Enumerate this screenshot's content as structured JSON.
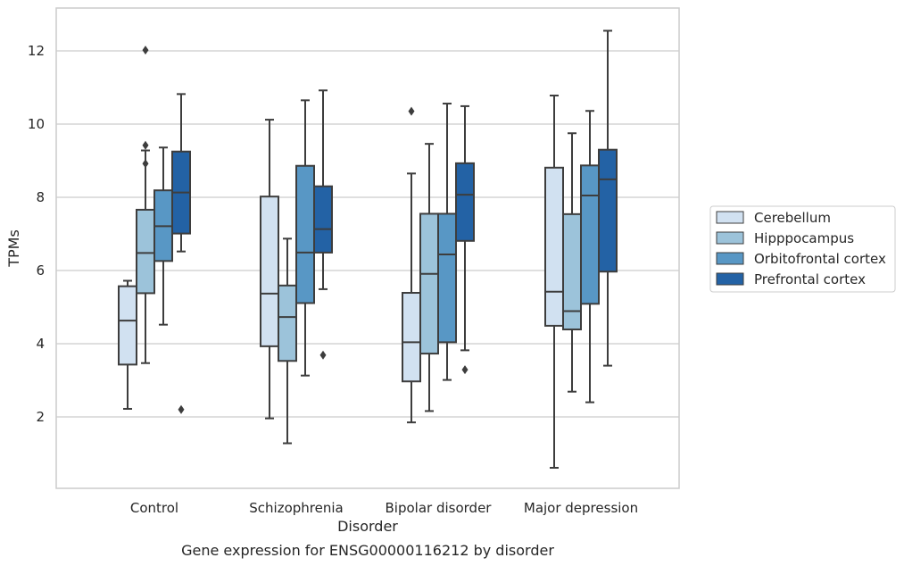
{
  "chart_data": {
    "type": "box",
    "caption": "Gene expression for ENSG00000116212 by disorder",
    "xlabel": "Disorder",
    "ylabel": "TPMs",
    "ylim": [
      0,
      13.2
    ],
    "yticks": [
      2,
      4,
      6,
      8,
      10,
      12
    ],
    "grid": "horizontal",
    "legend_placement": "right",
    "categories": [
      "Control",
      "Schizophrenia",
      "Bipolar disorder",
      "Major depression"
    ],
    "series": [
      {
        "name": "Cerebellum",
        "color": "#d1e1f1",
        "boxes": [
          {
            "whisker_low": 2.22,
            "q1": 3.43,
            "median": 4.63,
            "q3": 5.57,
            "whisker_high": 5.72,
            "outliers": []
          },
          {
            "whisker_low": 1.96,
            "q1": 3.93,
            "median": 5.37,
            "q3": 8.02,
            "whisker_high": 10.12,
            "outliers": []
          },
          {
            "whisker_low": 1.85,
            "q1": 2.97,
            "median": 4.04,
            "q3": 5.39,
            "whisker_high": 8.65,
            "outliers": [
              10.35
            ]
          },
          {
            "whisker_low": 0.61,
            "q1": 4.49,
            "median": 5.42,
            "q3": 8.81,
            "whisker_high": 10.78,
            "outliers": []
          }
        ]
      },
      {
        "name": "Hipppocampus",
        "color": "#9cc3da",
        "boxes": [
          {
            "whisker_low": 3.47,
            "q1": 5.38,
            "median": 6.48,
            "q3": 7.66,
            "whisker_high": 9.28,
            "outliers": [
              8.92,
              9.42,
              12.02
            ]
          },
          {
            "whisker_low": 1.28,
            "q1": 3.53,
            "median": 4.73,
            "q3": 5.59,
            "whisker_high": 6.87,
            "outliers": []
          },
          {
            "whisker_low": 2.16,
            "q1": 3.73,
            "median": 5.91,
            "q3": 7.55,
            "whisker_high": 9.46,
            "outliers": []
          },
          {
            "whisker_low": 2.69,
            "q1": 4.39,
            "median": 4.89,
            "q3": 7.54,
            "whisker_high": 9.75,
            "outliers": []
          }
        ]
      },
      {
        "name": "Orbitofrontal cortex",
        "color": "#5897c5",
        "boxes": [
          {
            "whisker_low": 4.52,
            "q1": 6.26,
            "median": 7.21,
            "q3": 8.19,
            "whisker_high": 9.36,
            "outliers": []
          },
          {
            "whisker_low": 3.13,
            "q1": 5.11,
            "median": 6.49,
            "q3": 8.86,
            "whisker_high": 10.65,
            "outliers": []
          },
          {
            "whisker_low": 3.01,
            "q1": 4.04,
            "median": 6.44,
            "q3": 7.55,
            "whisker_high": 10.56,
            "outliers": []
          },
          {
            "whisker_low": 2.4,
            "q1": 5.09,
            "median": 8.05,
            "q3": 8.87,
            "whisker_high": 10.36,
            "outliers": []
          }
        ]
      },
      {
        "name": "Prefrontal cortex",
        "color": "#2362a5",
        "boxes": [
          {
            "whisker_low": 6.52,
            "q1": 7.01,
            "median": 8.13,
            "q3": 9.25,
            "whisker_high": 10.82,
            "outliers": [
              2.2
            ]
          },
          {
            "whisker_low": 5.49,
            "q1": 6.49,
            "median": 7.13,
            "q3": 8.3,
            "whisker_high": 10.92,
            "outliers": [
              3.69
            ]
          },
          {
            "whisker_low": 3.82,
            "q1": 6.81,
            "median": 8.07,
            "q3": 8.93,
            "whisker_high": 10.49,
            "outliers": [
              3.29
            ]
          },
          {
            "whisker_low": 3.4,
            "q1": 5.97,
            "median": 8.49,
            "q3": 9.3,
            "whisker_high": 12.55,
            "outliers": []
          }
        ]
      }
    ]
  }
}
